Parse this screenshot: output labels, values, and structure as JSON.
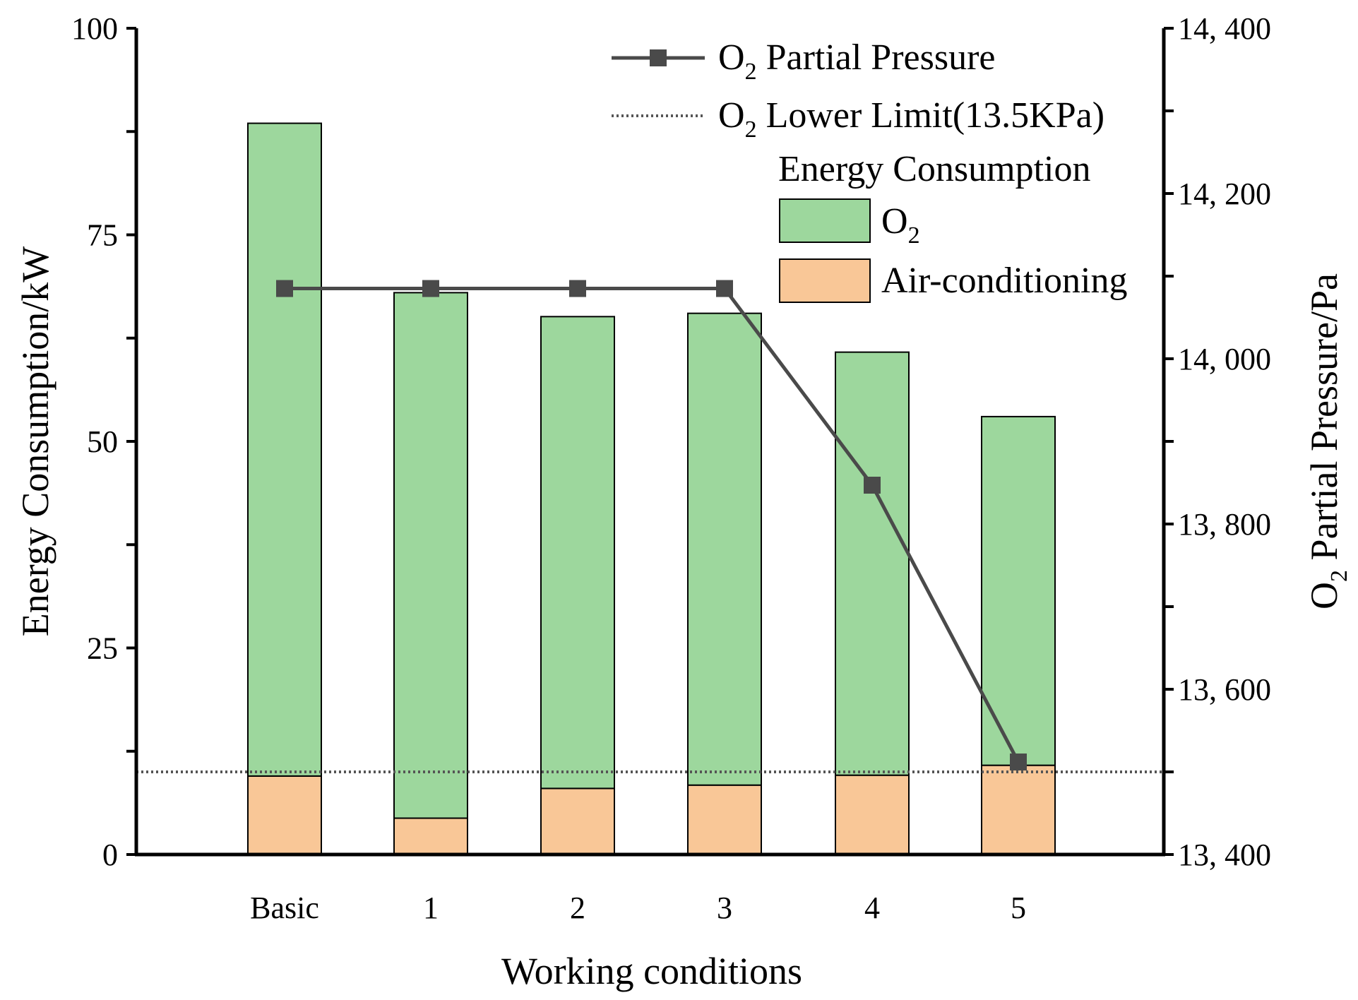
{
  "chart_data": {
    "type": "bar",
    "stacked": true,
    "xlabel": "Working conditions",
    "ylabel": "Energy Consumption/kW",
    "y2label": {
      "base": "O",
      "sub": "2",
      "rest": "  Partial Pressure/Pa"
    },
    "categories": [
      "Basic",
      "1",
      "2",
      "3",
      "4",
      "5"
    ],
    "ylim": [
      0,
      100
    ],
    "yticks": [
      0,
      25,
      50,
      75,
      100
    ],
    "yticklabels": [
      "0",
      "25",
      "50",
      "75",
      "100"
    ],
    "y2lim": [
      13400,
      14400
    ],
    "y2ticks": [
      13400,
      13600,
      13800,
      14000,
      14200,
      14400
    ],
    "y2ticklabels": [
      "13, 400",
      "13, 600",
      "13, 800",
      "14, 000",
      "14, 200",
      "14, 400"
    ],
    "series": [
      {
        "name": "Air-conditioning",
        "axis": "left",
        "kind": "bar",
        "color": "#f9c797",
        "values": [
          9.5,
          4.4,
          8.0,
          8.4,
          9.6,
          10.8
        ]
      },
      {
        "name": "O2",
        "axis": "left",
        "kind": "bar",
        "color": "#9dd79d",
        "values": [
          79.0,
          63.6,
          57.1,
          57.1,
          51.2,
          42.2
        ]
      },
      {
        "name": "O2 Partial Pressure",
        "axis": "right",
        "kind": "line",
        "color": "#4a4a4a",
        "values": [
          14085,
          14085,
          14085,
          14085,
          13847,
          13512
        ]
      }
    ],
    "reference_lines": [
      {
        "name": "O2 Lower Limit(13.5KPa)",
        "axis": "left",
        "value": 10.0,
        "color": "#555555",
        "style": "dotted"
      }
    ],
    "legend": {
      "placement": "top-right",
      "line_entry": {
        "base": "O",
        "sub": "2",
        "rest": " Partial Pressure"
      },
      "ref_entry": {
        "base": "O",
        "sub": "2",
        "rest": " Lower Limit(13.5KPa)"
      },
      "group_title": "Energy Consumption",
      "bar_entry_o2": {
        "base": "O",
        "sub": "2"
      },
      "bar_entry_ac": "Air-conditioning"
    }
  }
}
